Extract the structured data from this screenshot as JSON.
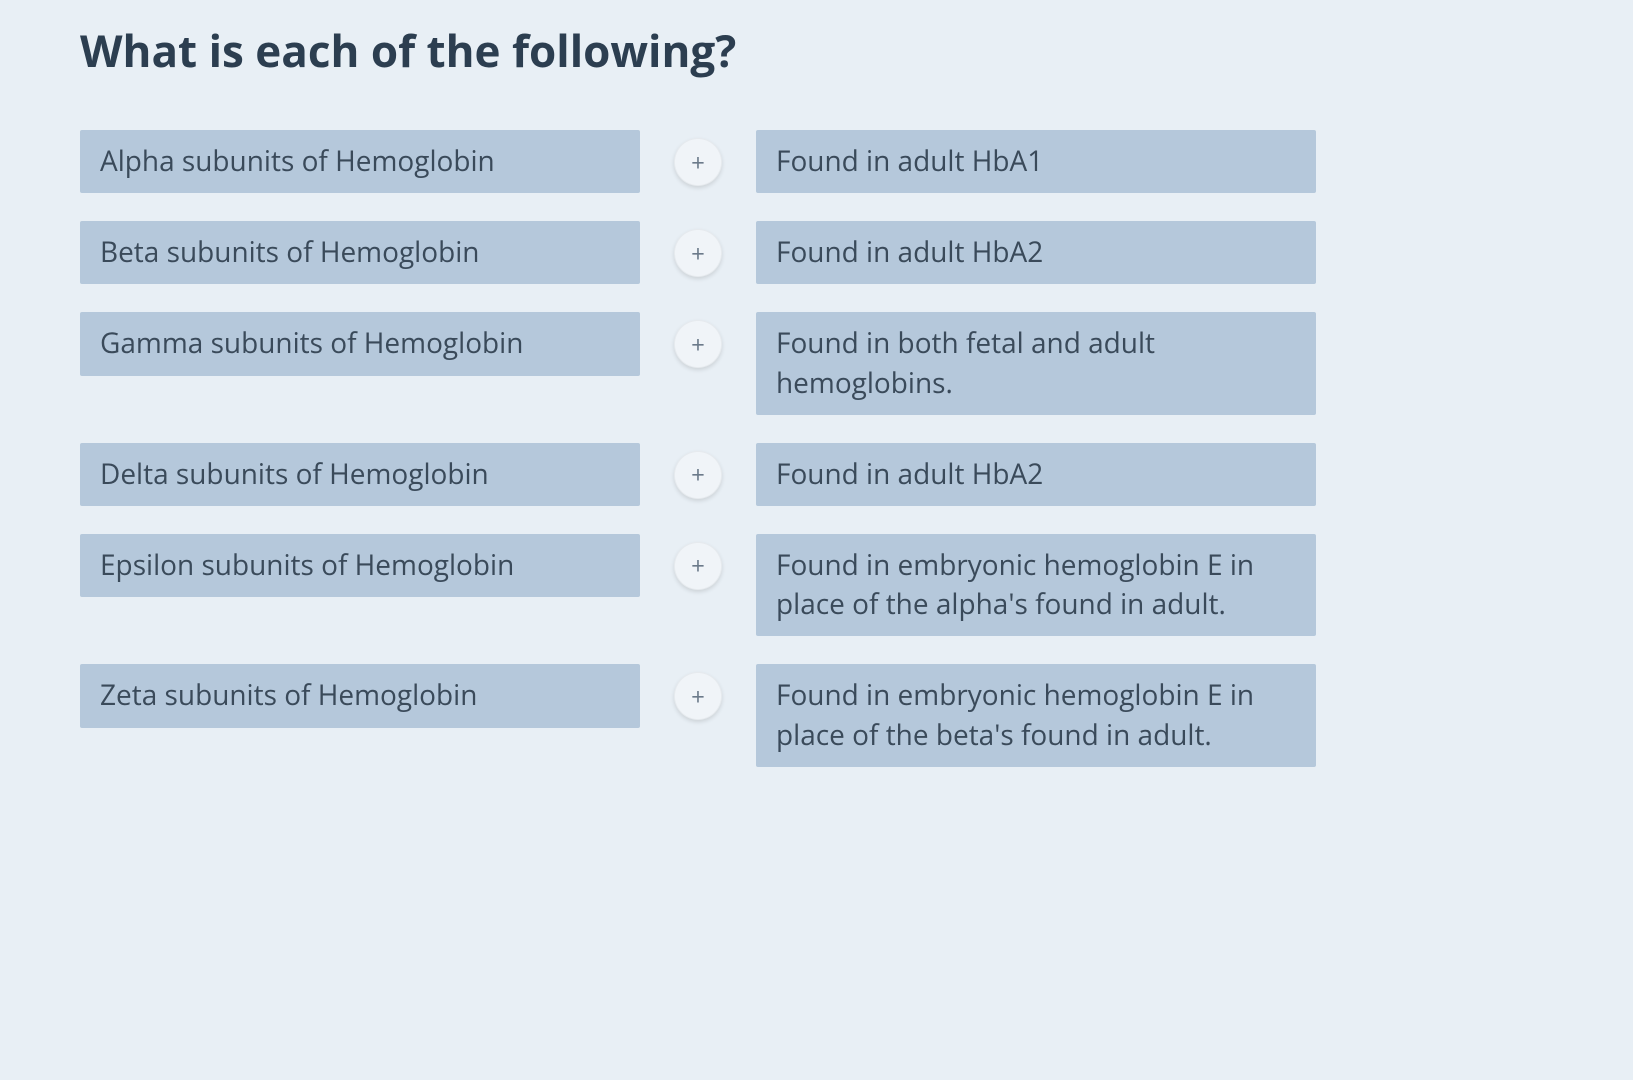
{
  "title": "What is each of the following?",
  "plus_label": "+",
  "colors": {
    "background": "#e8eff5",
    "pill_bg": "#b5c8db",
    "text": "#3a4a5a",
    "title": "#2c3e50",
    "plus_bg": "#f0f4f8",
    "plus_text": "#6b7a8a"
  },
  "rows": [
    {
      "left": "Alpha subunits of Hemoglobin",
      "right": "Found in adult HbA1"
    },
    {
      "left": "Beta subunits of Hemoglobin",
      "right": "Found in adult HbA2"
    },
    {
      "left": "Gamma subunits of Hemoglobin",
      "right": "Found in both fetal and adult hemoglobins."
    },
    {
      "left": "Delta subunits of Hemoglobin",
      "right": "Found in adult HbA2"
    },
    {
      "left": "Epsilon subunits of Hemoglobin",
      "right": "Found in embryonic hemoglobin E in place of the alpha's found in adult."
    },
    {
      "left": "Zeta subunits of Hemoglobin",
      "right": "Found in embryonic hemoglobin E in place of the beta's found in adult."
    }
  ]
}
